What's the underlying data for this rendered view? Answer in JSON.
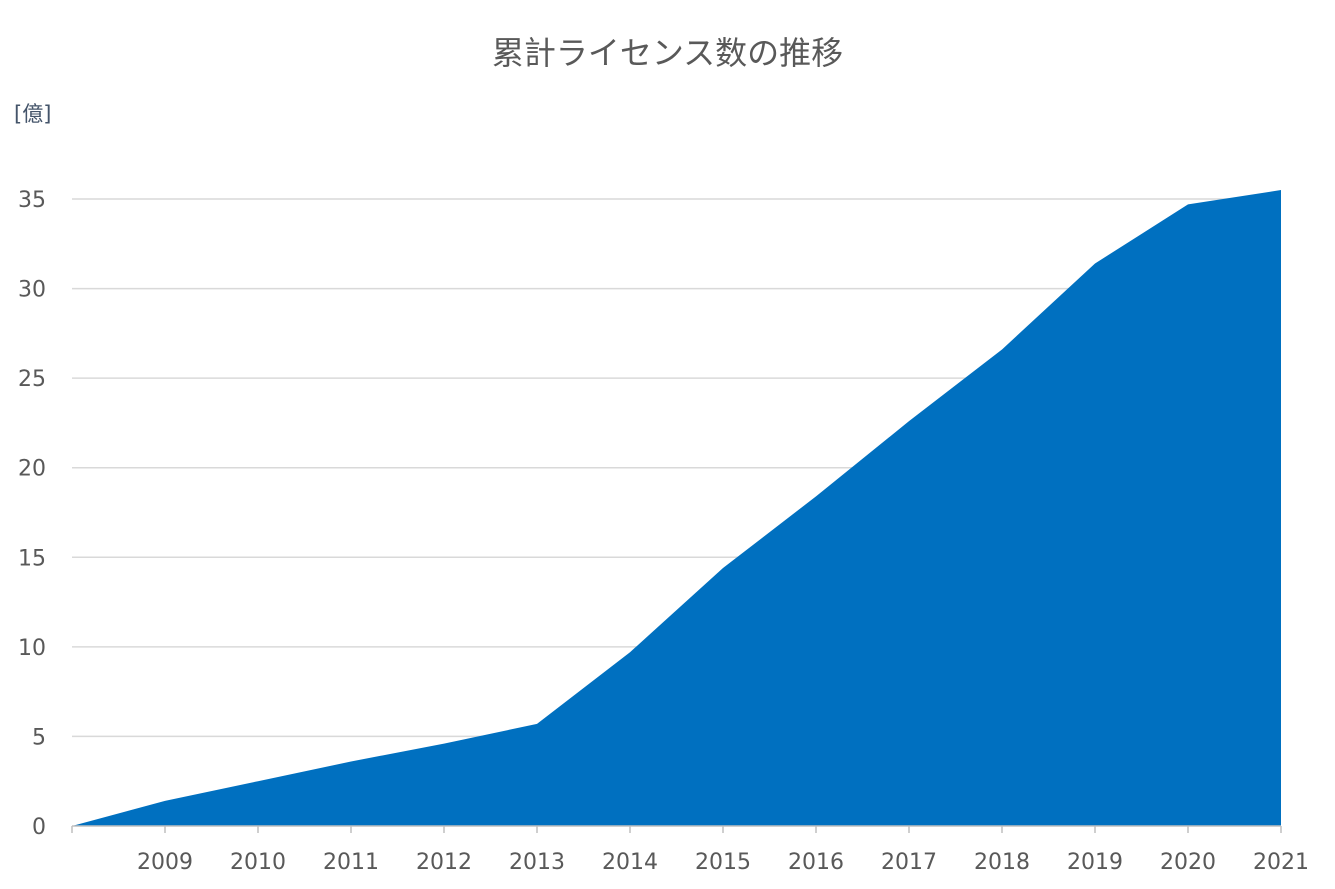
{
  "chart_data": {
    "type": "area",
    "title": "累計ライセンス数の推移",
    "unit_label": "[億]",
    "xlabel": "",
    "ylabel": "",
    "x": [
      "",
      "2009",
      "2010",
      "2011",
      "2012",
      "2013",
      "2014",
      "2015",
      "2016",
      "2017",
      "2018",
      "2019",
      "2020",
      "2021"
    ],
    "values": [
      0,
      1.4,
      2.5,
      3.6,
      4.6,
      5.7,
      9.7,
      14.4,
      18.4,
      22.6,
      26.6,
      31.4,
      34.7,
      35.5
    ],
    "yticks": [
      0,
      5,
      10,
      15,
      20,
      25,
      30,
      35
    ],
    "ylim": [
      0,
      35
    ],
    "grid": true,
    "legend": "none",
    "colors": {
      "fill": "#0070c0",
      "grid": "#d9d9d9",
      "axis": "#bfbfbf",
      "text": "#595959"
    }
  }
}
